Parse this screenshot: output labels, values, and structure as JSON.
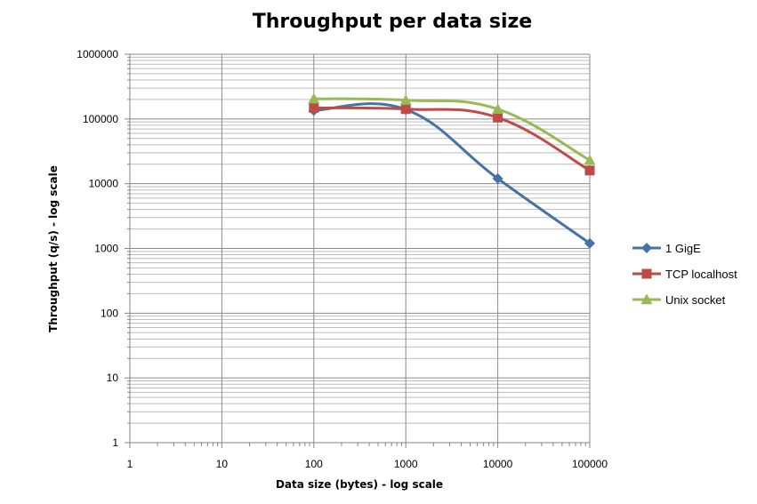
{
  "chart_data": {
    "type": "line",
    "title": "Throughput per data size",
    "xlabel": "Data size (bytes) - log scale",
    "ylabel": "Throughput (q/s) - log scale",
    "x_scale": "log",
    "y_scale": "log",
    "xlim": [
      1,
      100000
    ],
    "ylim": [
      1,
      1000000
    ],
    "x_ticks": [
      "1",
      "10",
      "100",
      "1000",
      "10000",
      "100000"
    ],
    "y_ticks": [
      "1",
      "10",
      "100",
      "1000",
      "10000",
      "100000",
      "1000000"
    ],
    "grid": true,
    "legend_position": "right",
    "series": [
      {
        "name": "1 GigE",
        "color": "#4572A7",
        "marker": "diamond",
        "x": [
          100,
          1000,
          10000,
          100000
        ],
        "y": [
          135000,
          140000,
          12000,
          1200
        ]
      },
      {
        "name": "TCP localhost",
        "color": "#BE4B48",
        "marker": "square",
        "x": [
          100,
          1000,
          10000,
          100000
        ],
        "y": [
          148000,
          142000,
          105000,
          16000
        ]
      },
      {
        "name": "Unix socket",
        "color": "#98B954",
        "marker": "triangle",
        "x": [
          100,
          1000,
          10000,
          100000
        ],
        "y": [
          205000,
          195000,
          142000,
          23000
        ]
      }
    ]
  }
}
